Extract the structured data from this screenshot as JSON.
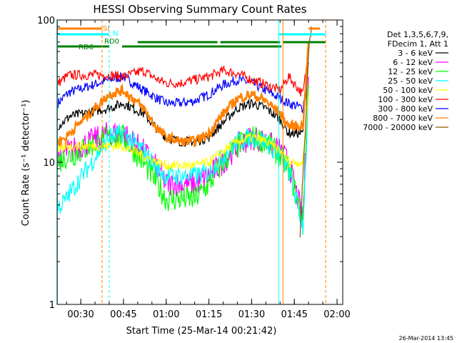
{
  "chart_data": {
    "type": "line",
    "title": "HESSI Observing Summary Count Rates",
    "xlabel": "Start Time (25-Mar-14 00:21:42)",
    "ylabel": "Count Rate (s⁻¹ detector⁻¹)",
    "y_scale": "log",
    "ylim": [
      1,
      100
    ],
    "y_ticks": [
      {
        "value": 1,
        "label": "1"
      },
      {
        "value": 10,
        "label": "10"
      },
      {
        "value": 100,
        "label": "100"
      }
    ],
    "xlim": [
      "00:21:42",
      "02:02:00"
    ],
    "x_ticks": [
      {
        "value": "00:30",
        "label": "00:30"
      },
      {
        "value": "00:45",
        "label": "00:45"
      },
      {
        "value": "01:00",
        "label": "01:00"
      },
      {
        "value": "01:15",
        "label": "01:15"
      },
      {
        "value": "01:30",
        "label": "01:30"
      },
      {
        "value": "01:45",
        "label": "01:45"
      },
      {
        "value": "02:00",
        "label": "02:00"
      }
    ],
    "legend_header": [
      "Det 1,3,5,6,7,9,",
      "FDecim 1, Att 1"
    ],
    "legend_position": "right",
    "series": [
      {
        "name": "3 - 6 keV",
        "color": "#000000",
        "x": [
          "00:22",
          "00:25",
          "00:26",
          "00:40",
          "00:45",
          "00:52",
          "00:57",
          "01:00",
          "01:05",
          "01:10",
          "01:15",
          "01:20",
          "01:25",
          "01:30",
          "01:35",
          "01:40",
          "01:43",
          "01:48",
          "01:50"
        ],
        "values": [
          18,
          20,
          21,
          24,
          26,
          22,
          17,
          15,
          14,
          14,
          15,
          19,
          24,
          26,
          24,
          20,
          16,
          16,
          60
        ]
      },
      {
        "name": "6 - 12 keV",
        "color": "#ff00ff",
        "x": [
          "00:22",
          "00:25",
          "00:26",
          "00:40",
          "00:45",
          "00:52",
          "00:57",
          "01:00",
          "01:05",
          "01:10",
          "01:15",
          "01:20",
          "01:25",
          "01:30",
          "01:35",
          "01:40",
          "01:43",
          "01:48",
          "01:50"
        ],
        "values": [
          11,
          12,
          12,
          16,
          16,
          12,
          9,
          7,
          7,
          7,
          8,
          10,
          13,
          15,
          14,
          12,
          10,
          4,
          40
        ]
      },
      {
        "name": "12 - 25 keV",
        "color": "#00ff00",
        "x": [
          "00:22",
          "00:25",
          "00:26",
          "00:40",
          "00:45",
          "00:52",
          "00:57",
          "01:00",
          "01:05",
          "01:10",
          "01:15",
          "01:20",
          "01:25",
          "01:30",
          "01:35",
          "01:40",
          "01:43",
          "01:48",
          "01:50"
        ],
        "values": [
          10,
          11,
          11,
          15,
          15,
          10,
          7,
          5.5,
          5.5,
          5.5,
          7,
          10,
          13,
          15,
          14,
          11,
          9,
          4,
          35
        ]
      },
      {
        "name": "25 - 50 keV",
        "color": "#00ffff",
        "x": [
          "00:22",
          "00:25",
          "00:26",
          "00:40",
          "00:45",
          "00:52",
          "00:57",
          "01:00",
          "01:05",
          "01:10",
          "01:15",
          "01:20",
          "01:25",
          "01:30",
          "01:35",
          "01:40",
          "01:43",
          "01:48",
          "01:50"
        ],
        "values": [
          4.8,
          5.5,
          6,
          15,
          16,
          12,
          9,
          8,
          8,
          8,
          8.5,
          11,
          14,
          15,
          14,
          11,
          9,
          3.5,
          30
        ]
      },
      {
        "name": "50 - 100 keV",
        "color": "#ffff00",
        "x": [
          "00:22",
          "00:25",
          "00:26",
          "00:40",
          "00:45",
          "00:52",
          "00:57",
          "01:00",
          "01:05",
          "01:10",
          "01:15",
          "01:20",
          "01:25",
          "01:30",
          "01:35",
          "01:40",
          "01:43",
          "01:48",
          "01:50"
        ],
        "values": [
          12,
          13,
          13,
          13,
          13,
          11,
          10,
          9.5,
          9.5,
          9.5,
          10,
          12,
          14,
          15,
          14,
          12,
          10,
          10,
          30
        ]
      },
      {
        "name": "100 - 300 keV",
        "color": "#ff0000",
        "x": [
          "00:22",
          "00:25",
          "00:26",
          "00:40",
          "00:45",
          "00:52",
          "00:57",
          "01:00",
          "01:05",
          "01:10",
          "01:15",
          "01:20",
          "01:25",
          "01:30",
          "01:35",
          "01:40",
          "01:43",
          "01:48",
          "01:50"
        ],
        "values": [
          36,
          40,
          41,
          41,
          40,
          44,
          38,
          36,
          36,
          38,
          40,
          44,
          42,
          38,
          35,
          32,
          40,
          30,
          60
        ]
      },
      {
        "name": "300 - 800 keV",
        "color": "#0000ff",
        "x": [
          "00:22",
          "00:25",
          "00:26",
          "00:40",
          "00:45",
          "00:52",
          "00:57",
          "01:00",
          "01:05",
          "01:10",
          "01:15",
          "01:20",
          "01:25",
          "01:30",
          "01:35",
          "01:40",
          "01:43",
          "01:48",
          "01:50"
        ],
        "values": [
          26,
          30,
          31,
          38,
          40,
          32,
          28,
          26,
          26,
          27,
          30,
          35,
          38,
          36,
          32,
          28,
          26,
          24,
          50
        ]
      },
      {
        "name": "800 - 7000 keV",
        "color": "#ff8000",
        "x": [
          "00:22",
          "00:25",
          "00:26",
          "00:40",
          "00:45",
          "00:52",
          "00:57",
          "01:00",
          "01:05",
          "01:10",
          "01:15",
          "01:20",
          "01:25",
          "01:30",
          "01:35",
          "01:40",
          "01:43",
          "01:48",
          "01:50"
        ],
        "values": [
          14,
          15,
          16,
          30,
          32,
          24,
          17,
          15,
          14,
          14,
          16,
          22,
          28,
          30,
          27,
          22,
          18,
          18,
          70
        ]
      },
      {
        "name": "7000 - 20000 keV",
        "color": "#8b5a00",
        "x": [
          "01:47",
          "01:48",
          "01:49",
          "01:50",
          "01:51"
        ],
        "values": [
          3,
          8,
          20,
          60,
          90
        ]
      }
    ],
    "annotations": [
      {
        "label": "SI",
        "color": "#ff8000"
      },
      {
        "label": "N",
        "color": "#00ffff"
      },
      {
        "label": "RD0",
        "color": "#008000"
      },
      {
        "label": "RD6",
        "color": "#008000"
      }
    ],
    "timestamp": "26-Mar-2014 13:45"
  }
}
